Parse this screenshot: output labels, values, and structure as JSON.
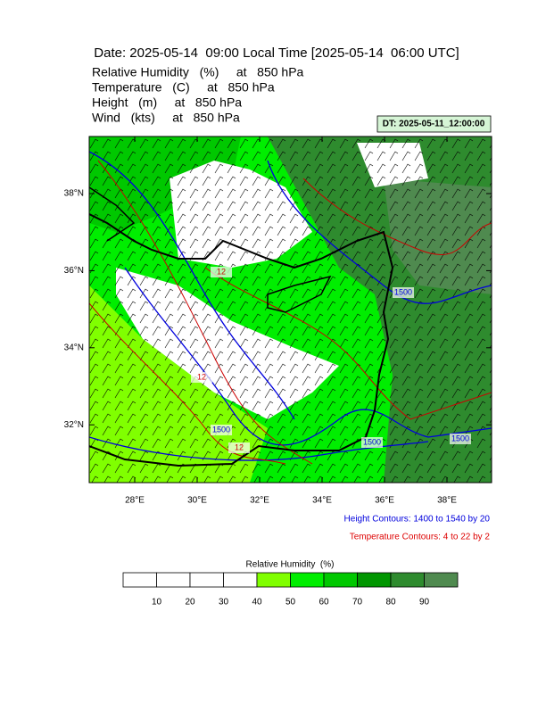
{
  "header": {
    "title": "Date: 2025-05-14  09:00 Local Time [2025-05-14  06:00 UTC]",
    "lines": [
      "Relative Humidity   (%)     at   850 hPa",
      "Temperature   (C)     at   850 hPa",
      "Height   (m)     at   850 hPa",
      "Wind   (kts)     at   850 hPa"
    ]
  },
  "dt_label": "DT: 2025-05-11_12:00:00",
  "map": {
    "xticks": [
      {
        "value": 28,
        "label": "28°E"
      },
      {
        "value": 30,
        "label": "30°E"
      },
      {
        "value": 32,
        "label": "32°E"
      },
      {
        "value": 34,
        "label": "34°E"
      },
      {
        "value": 36,
        "label": "36°E"
      },
      {
        "value": 38,
        "label": "38°E"
      }
    ],
    "yticks": [
      {
        "value": 38,
        "label": "38°N"
      },
      {
        "value": 36,
        "label": "36°N"
      },
      {
        "value": 34,
        "label": "34°N"
      },
      {
        "value": 32,
        "label": "32°N"
      }
    ],
    "contour_labels": [
      "12",
      "12",
      "12",
      "1500",
      "1500",
      "1500",
      "1500"
    ]
  },
  "notes": [
    "Height Contours: 1400 to 1540 by 20",
    "Temperature Contours: 4 to 22 by 2"
  ],
  "colorbar": {
    "title": "Relative Humidity  (%)",
    "ticks": [
      10,
      20,
      30,
      40,
      50,
      60,
      70,
      80,
      90
    ],
    "colors": [
      "#ffffff",
      "#ffffff",
      "#ffffff",
      "#ffffff",
      "#80ff00",
      "#00ee00",
      "#00c800",
      "#009600",
      "#2e8b2e",
      "#4f8a4f"
    ]
  }
}
